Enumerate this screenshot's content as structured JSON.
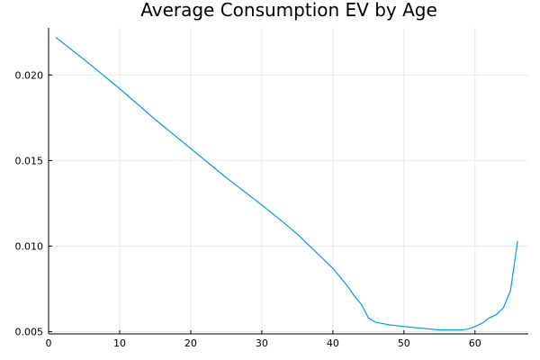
{
  "chart_data": {
    "type": "line",
    "title": "Average Consumption EV by Age",
    "xlabel": "",
    "ylabel": "",
    "xlim": [
      0,
      67.5
    ],
    "ylim": [
      0.00487,
      0.02275
    ],
    "xticks": [
      0,
      10,
      20,
      30,
      40,
      50,
      60
    ],
    "xtick_labels": [
      "0",
      "10",
      "20",
      "30",
      "40",
      "50",
      "60"
    ],
    "yticks": [
      0.005,
      0.01,
      0.015,
      0.02
    ],
    "ytick_labels": [
      "0.005",
      "0.010",
      "0.015",
      "0.020"
    ],
    "grid": true,
    "legend": "none",
    "series": [
      {
        "color": "#009af9",
        "x": [
          1,
          5,
          10,
          15,
          20,
          25,
          30,
          33,
          35,
          37,
          39,
          40,
          41,
          42,
          43,
          44,
          45,
          46,
          48,
          50,
          55,
          58,
          59,
          60,
          61,
          62,
          63,
          64,
          65,
          66
        ],
        "y": [
          0.0222,
          0.0209,
          0.0192,
          0.0174,
          0.0157,
          0.014,
          0.0124,
          0.0114,
          0.0107,
          0.0099,
          0.0091,
          0.0087,
          0.0082,
          0.0077,
          0.0071,
          0.0066,
          0.0058,
          0.00555,
          0.0054,
          0.0053,
          0.0051,
          0.0051,
          0.00515,
          0.0053,
          0.0055,
          0.0058,
          0.006,
          0.0064,
          0.0074,
          0.0103
        ]
      }
    ]
  }
}
